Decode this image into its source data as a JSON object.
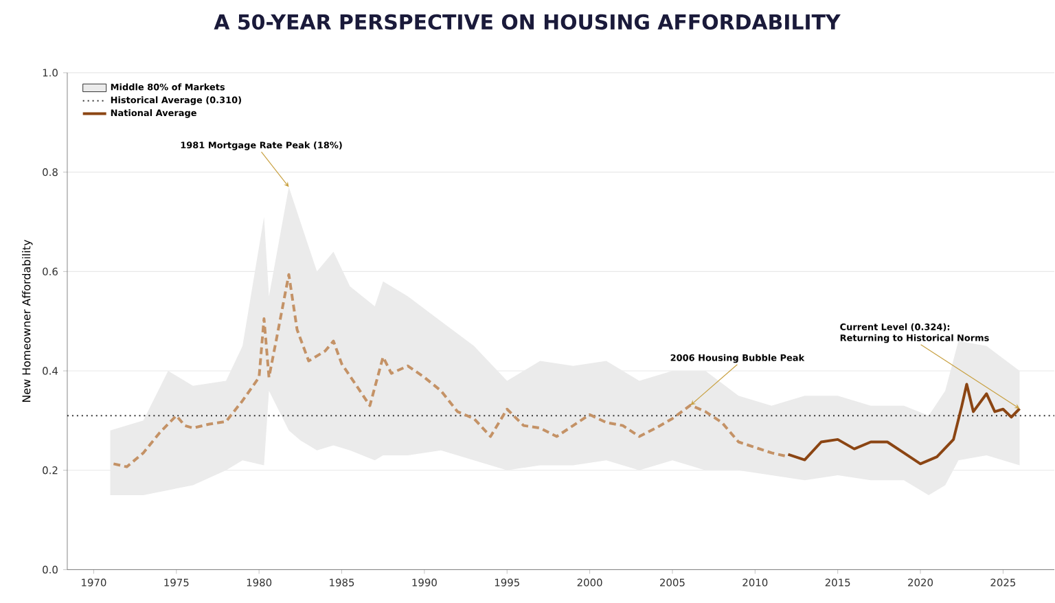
{
  "chart_data": {
    "type": "line",
    "title": "A 50-YEAR PERSPECTIVE ON HOUSING AFFORDABILITY",
    "ylabel": "New Homeowner Affordability",
    "xlim": [
      1968.4,
      2028.1
    ],
    "ylim": [
      0,
      1.0
    ],
    "xticks": [
      1970,
      1975,
      1980,
      1985,
      1990,
      1995,
      2000,
      2005,
      2010,
      2015,
      2020,
      2025
    ],
    "yticks": [
      {
        "value": 0,
        "label": "0.0"
      },
      0.2,
      0.4,
      0.6,
      0.8,
      {
        "value": 1.0,
        "label": "1.0"
      }
    ],
    "grid": "y",
    "legend": "top left",
    "series": [
      {
        "type": "area",
        "name": "Middle 80% of Markets",
        "color": "#ebebeb",
        "x": [
          1971,
          1973,
          1974.5,
          1976,
          1978,
          1979,
          1980.3,
          1980.6,
          1981.8,
          1982.5,
          1983.5,
          1984.5,
          1985.5,
          1987,
          1987.5,
          1989,
          1991,
          1993,
          1995,
          1997,
          1999,
          2001,
          2003,
          2005,
          2007,
          2009,
          2011,
          2013,
          2015,
          2017,
          2019,
          2020.5,
          2021.5,
          2022.3,
          2024,
          2026
        ],
        "values": [
          null,
          null,
          null,
          null,
          null,
          null,
          null,
          null,
          null,
          null,
          null,
          null,
          null,
          null,
          null,
          null,
          null,
          null,
          null,
          null,
          null,
          null,
          null,
          null,
          null,
          null,
          null,
          null,
          null,
          null,
          null,
          null,
          null,
          null,
          null,
          null
        ],
        "upper": [
          0.28,
          0.3,
          0.4,
          0.37,
          0.38,
          0.45,
          0.71,
          0.55,
          0.77,
          0.7,
          0.6,
          0.64,
          0.57,
          0.53,
          0.58,
          0.55,
          0.5,
          0.45,
          0.38,
          0.42,
          0.41,
          0.42,
          0.38,
          0.4,
          0.4,
          0.35,
          0.33,
          0.35,
          0.35,
          0.33,
          0.33,
          0.31,
          0.36,
          0.46,
          0.45,
          0.4
        ],
        "lower": [
          0.15,
          0.15,
          0.16,
          0.17,
          0.2,
          0.22,
          0.21,
          0.36,
          0.28,
          0.26,
          0.24,
          0.25,
          0.24,
          0.22,
          0.23,
          0.23,
          0.24,
          0.22,
          0.2,
          0.21,
          0.21,
          0.22,
          0.2,
          0.22,
          0.2,
          0.2,
          0.19,
          0.18,
          0.19,
          0.18,
          0.18,
          0.15,
          0.17,
          0.22,
          0.23,
          0.21
        ]
      },
      {
        "color": "#c49266",
        "line_style": "dashed",
        "x": [
          1971.2,
          1972,
          1973,
          1974,
          1975,
          1975.5,
          1976,
          1977,
          1978,
          1979,
          1980,
          1980.3,
          1980.6,
          1981,
          1981.8,
          1982.3,
          1983,
          1984,
          1984.5,
          1985,
          1986,
          1986.7,
          1987.5,
          1988,
          1989,
          1990,
          1991,
          1992,
          1993,
          1994,
          1995,
          1996,
          1997,
          1998,
          1999,
          2000,
          2001,
          2002,
          2003,
          2004,
          2005,
          2006.1,
          2007,
          2008,
          2009,
          2010,
          2011,
          2011.8
        ],
        "values": [
          0.213,
          0.207,
          0.235,
          0.276,
          0.31,
          0.29,
          0.285,
          0.293,
          0.298,
          0.34,
          0.387,
          0.505,
          0.387,
          0.455,
          0.594,
          0.483,
          0.42,
          0.44,
          0.46,
          0.414,
          0.365,
          0.33,
          0.428,
          0.395,
          0.41,
          0.387,
          0.36,
          0.318,
          0.304,
          0.268,
          0.323,
          0.29,
          0.285,
          0.268,
          0.29,
          0.312,
          0.296,
          0.29,
          0.268,
          0.285,
          0.304,
          0.331,
          0.318,
          0.296,
          0.257,
          0.246,
          0.235,
          0.229
        ]
      },
      {
        "name": "National Average",
        "color": "#8b4513",
        "line_style": "solid",
        "x": [
          2012,
          2013,
          2014,
          2015,
          2016,
          2017,
          2018,
          2019,
          2020,
          2021,
          2022,
          2022.5,
          2022.8,
          2023.2,
          2024,
          2024.5,
          2025,
          2025.5,
          2026
        ],
        "values": [
          0.232,
          0.221,
          0.257,
          0.262,
          0.243,
          0.257,
          0.257,
          0.235,
          0.213,
          0.227,
          0.262,
          0.329,
          0.373,
          0.318,
          0.354,
          0.318,
          0.323,
          0.307,
          0.324
        ]
      }
    ],
    "ref_lines": [
      {
        "axis": "y",
        "value": 0.31,
        "label": "Historical Average (0.310)",
        "color": "#333333",
        "line_style": "dotted"
      }
    ],
    "annotations": [
      {
        "text": "1981 Mortgage Rate Peak (18%)",
        "x": 1981.8,
        "y": 0.77
      },
      {
        "text": "2006 Housing Bubble Peak",
        "x": 2006.1,
        "y": 0.331
      },
      {
        "text": "Current Level (0.324): Returning to Historical Norms",
        "x": 2026,
        "y": 0.324
      }
    ]
  }
}
